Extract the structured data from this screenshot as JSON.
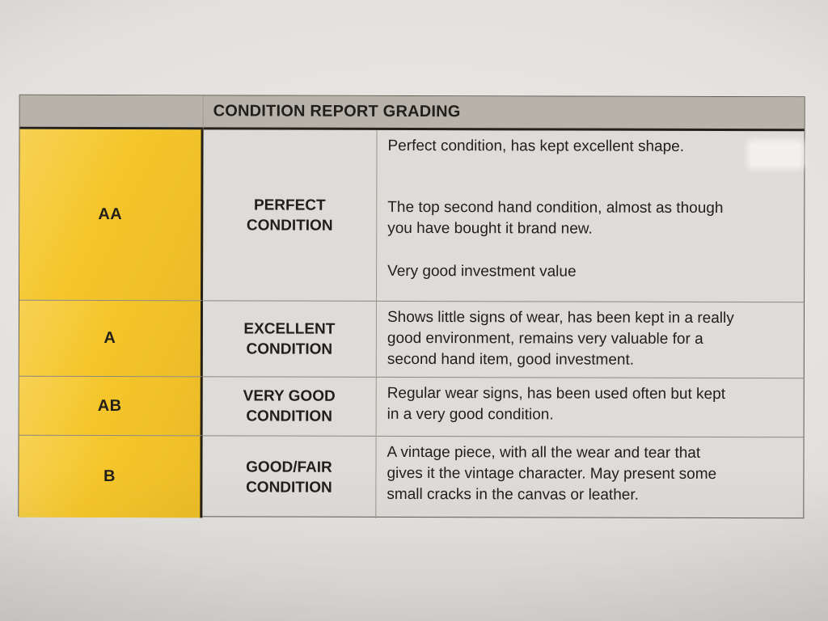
{
  "header": {
    "title": "CONDITION REPORT GRADING"
  },
  "rows": [
    {
      "grade": "AA",
      "condition": "PERFECT\nCONDITION",
      "paragraphs": [
        "Perfect condition, has kept excellent shape.",
        "The top second hand condition, almost as though\nyou have bought it brand new.",
        "Very good investment value"
      ]
    },
    {
      "grade": "A",
      "condition": "EXCELLENT\nCONDITION",
      "paragraphs": [
        "Shows little signs of wear, has been kept in a really\ngood environment, remains very valuable for a\nsecond hand item, good investment."
      ]
    },
    {
      "grade": "AB",
      "condition": "VERY GOOD\nCONDITION",
      "paragraphs": [
        "Regular wear signs, has been used often but kept\nin a very good condition."
      ]
    },
    {
      "grade": "B",
      "condition": "GOOD/FAIR\nCONDITION",
      "paragraphs": [
        "A vintage piece, with all the wear and tear that\ngives it the vintage character. May present some\nsmall cracks in the canvas or leather."
      ]
    }
  ],
  "colors": {
    "grade_cell": "#f5c62b",
    "header_cell": "#b7b3aa",
    "text": "#221f1b"
  }
}
